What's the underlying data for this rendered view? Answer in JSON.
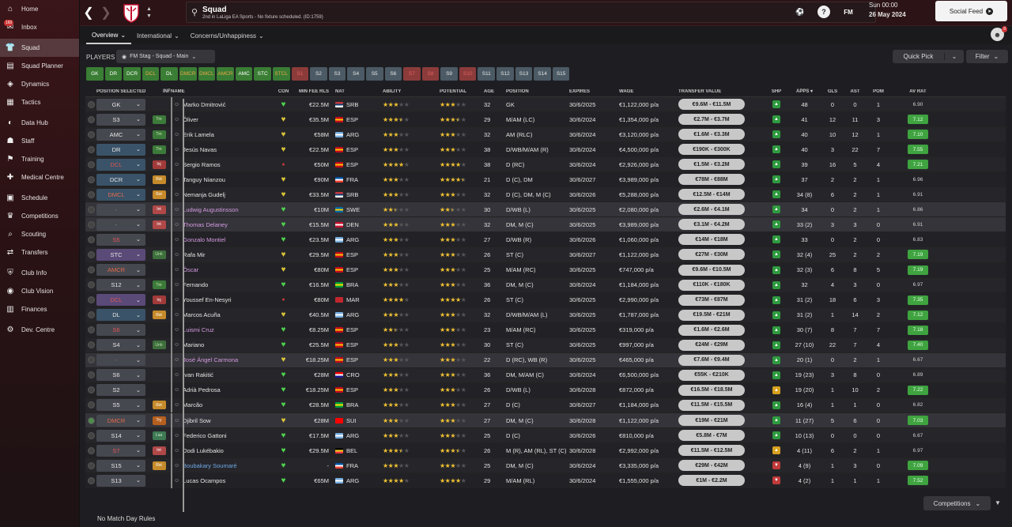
{
  "sidebar": {
    "items": [
      {
        "label": "Home",
        "icon": "home-icon",
        "glyph": "⌂"
      },
      {
        "label": "Inbox",
        "icon": "inbox-icon",
        "glyph": "✉",
        "badge": "160"
      },
      {
        "label": "Squad",
        "icon": "squad-icon",
        "glyph": "👕",
        "active": true
      },
      {
        "label": "Squad Planner",
        "icon": "squad-planner-icon",
        "glyph": "▤"
      },
      {
        "label": "Dynamics",
        "icon": "dynamics-icon",
        "glyph": "◈"
      },
      {
        "label": "Tactics",
        "icon": "tactics-icon",
        "glyph": "▦"
      },
      {
        "label": "Data Hub",
        "icon": "data-hub-icon",
        "glyph": "◐"
      },
      {
        "label": "Staff",
        "icon": "staff-icon",
        "glyph": "☗"
      },
      {
        "label": "Training",
        "icon": "training-icon",
        "glyph": "⚑"
      },
      {
        "label": "Medical Centre",
        "icon": "medical-icon",
        "glyph": "✚"
      },
      {
        "label": "Schedule",
        "icon": "schedule-icon",
        "glyph": "▣"
      },
      {
        "label": "Competitions",
        "icon": "competitions-icon",
        "glyph": "♛"
      },
      {
        "label": "Scouting",
        "icon": "scouting-icon",
        "glyph": "⌕"
      },
      {
        "label": "Transfers",
        "icon": "transfers-icon",
        "glyph": "⇄"
      },
      {
        "label": "Club Info",
        "icon": "club-info-icon",
        "glyph": "⛨"
      },
      {
        "label": "Club Vision",
        "icon": "club-vision-icon",
        "glyph": "◉"
      },
      {
        "label": "Finances",
        "icon": "finances-icon",
        "glyph": "▥"
      },
      {
        "label": "Dev. Centre",
        "icon": "dev-centre-icon",
        "glyph": "⚙"
      }
    ]
  },
  "header": {
    "title": "Squad",
    "subtitle": "2nd in LaLiga EA Sports - No fixture scheduled. (ID:1759)",
    "date_line1": "Sun 00:00",
    "date_line2": "26 May 2024",
    "social_feed": "Social Feed",
    "fm_label": "FM"
  },
  "subtabs": [
    {
      "label": "Overview",
      "active": true
    },
    {
      "label": "International"
    },
    {
      "label": "Concerns/Unhappiness"
    }
  ],
  "players_bar": {
    "label": "PLAYERS",
    "view": "FM Stag - Squad - Main",
    "quick_pick": "Quick Pick",
    "filter": "Filter"
  },
  "chips": [
    {
      "t": "GK",
      "s": "g"
    },
    {
      "t": "DR",
      "s": "g"
    },
    {
      "t": "DCR",
      "s": "g"
    },
    {
      "t": "DCL",
      "s": "go"
    },
    {
      "t": "DL",
      "s": "g"
    },
    {
      "t": "DMCR",
      "s": "go"
    },
    {
      "t": "DMCL",
      "s": "go"
    },
    {
      "t": "AMCR",
      "s": "go"
    },
    {
      "t": "AMC",
      "s": "g"
    },
    {
      "t": "STC",
      "s": "g"
    },
    {
      "t": "STCL",
      "s": "go"
    },
    {
      "t": "S1",
      "s": "r"
    },
    {
      "t": "S2",
      "s": "s"
    },
    {
      "t": "S3",
      "s": "s"
    },
    {
      "t": "S4",
      "s": "s"
    },
    {
      "t": "S5",
      "s": "s"
    },
    {
      "t": "S6",
      "s": "s"
    },
    {
      "t": "S7",
      "s": "r"
    },
    {
      "t": "S8",
      "s": "r"
    },
    {
      "t": "S9",
      "s": "s"
    },
    {
      "t": "S10",
      "s": "r"
    },
    {
      "t": "S11",
      "s": "s"
    },
    {
      "t": "S12",
      "s": "s"
    },
    {
      "t": "S13",
      "s": "s"
    },
    {
      "t": "S14",
      "s": "s"
    },
    {
      "t": "S15",
      "s": "s"
    }
  ],
  "columns": {
    "pos": "POSITION SELECTED",
    "inf": "INF",
    "name": "NAME",
    "con": "CON",
    "fee": "MIN FEE RLS",
    "nat": "NAT",
    "abi": "ABILITY",
    "pot": "POTENTIAL",
    "age": "AGE",
    "position": "POSITION",
    "expires": "EXPIRES",
    "wage": "WAGE",
    "tv": "TRANSFER VALUE",
    "shp": "SHP",
    "apps": "APPS",
    "gls": "GLS",
    "ast": "AST",
    "pom": "POM",
    "av": "AV RAT"
  },
  "players": [
    {
      "sel": "GK",
      "sc": "gray",
      "inf": "",
      "name": "Marko Dmitrović",
      "con": "g",
      "fee": "€22.5M",
      "nat": "SRB",
      "flag": [
        "#c6363c",
        "#0c4076",
        "#ffffff"
      ],
      "abi": 3,
      "pot": 3,
      "age": "32",
      "position": "GK",
      "exp": "30/6/2025",
      "wage": "€1,122,000 p/a",
      "tv": "€9.6M - €11.5M",
      "shp": "g",
      "apps": "48",
      "gls": "0",
      "ast": "0",
      "pom": "1",
      "av": "6.90",
      "avg": false
    },
    {
      "sel": "S3",
      "sc": "gray",
      "inf": "Tm",
      "it": "tm",
      "name": "Óliver",
      "con": "y",
      "fee": "€35.5M",
      "nat": "ESP",
      "flag": [
        "#c60b1e",
        "#ffc400",
        "#c60b1e"
      ],
      "abi": 3.5,
      "pot": 3.5,
      "age": "29",
      "position": "M/AM (LC)",
      "exp": "30/6/2024",
      "wage": "€1,354,000 p/a",
      "tv": "€2.7M - €3.7M",
      "shp": "g",
      "apps": "41",
      "gls": "12",
      "ast": "11",
      "pom": "3",
      "av": "7.12",
      "avg": true
    },
    {
      "sel": "AMC",
      "sc": "gray",
      "inf": "Tm",
      "it": "tm",
      "name": "Erik Lamela",
      "con": "y",
      "fee": "€58M",
      "nat": "ARG",
      "flag": [
        "#74acdf",
        "#ffffff",
        "#74acdf"
      ],
      "abi": 3,
      "pot": 3,
      "age": "32",
      "position": "AM (RLC)",
      "exp": "30/6/2024",
      "wage": "€3,120,000 p/a",
      "tv": "€1.6M - €3.3M",
      "shp": "g",
      "apps": "40",
      "gls": "10",
      "ast": "12",
      "pom": "1",
      "av": "7.10",
      "avg": true
    },
    {
      "sel": "DR",
      "sc": "blue",
      "inf": "Tm",
      "it": "tm",
      "name": "Jesús Navas",
      "con": "y",
      "fee": "€22.5M",
      "nat": "ESP",
      "flag": [
        "#c60b1e",
        "#ffc400",
        "#c60b1e"
      ],
      "abi": 3,
      "pot": 3,
      "age": "38",
      "position": "D/WB/M/AM (R)",
      "exp": "30/6/2024",
      "wage": "€4,500,000 p/a",
      "tv": "€190K - €300K",
      "shp": "g",
      "apps": "40",
      "gls": "3",
      "ast": "22",
      "pom": "7",
      "av": "7.55",
      "avg": true
    },
    {
      "sel": "DCL",
      "sc": "blue",
      "red": true,
      "inf": "Inj",
      "it": "inj",
      "name": "Sergio Ramos",
      "con": "r",
      "fee": "€50M",
      "nat": "ESP",
      "flag": [
        "#c60b1e",
        "#ffc400",
        "#c60b1e"
      ],
      "abi": 4,
      "pot": 4,
      "age": "38",
      "position": "D (RC)",
      "exp": "30/6/2024",
      "wage": "€2,926,000 p/a",
      "tv": "€1.5M - €3.2M",
      "shp": "g",
      "apps": "39",
      "gls": "16",
      "ast": "5",
      "pom": "4",
      "av": "7.21",
      "avg": true
    },
    {
      "sel": "DCR",
      "sc": "blue",
      "inf": "Rst",
      "it": "rst",
      "name": "Tanguy Nianzou",
      "con": "y",
      "fee": "€90M",
      "nat": "FRA",
      "flag": [
        "#0055a4",
        "#ffffff",
        "#ef4135"
      ],
      "abi": 3,
      "pot": 4.5,
      "age": "21",
      "position": "D (C), DM",
      "exp": "30/6/2027",
      "wage": "€3,989,000 p/a",
      "tv": "€78M - €88M",
      "shp": "g",
      "apps": "37",
      "gls": "2",
      "ast": "2",
      "pom": "1",
      "av": "6.96",
      "avg": false
    },
    {
      "sel": "DMCL",
      "sc": "blue",
      "orange": true,
      "inf": "Rst",
      "it": "rst",
      "name": "Nemanja Gudelj",
      "con": "y",
      "fee": "€33.5M",
      "nat": "SRB",
      "flag": [
        "#c6363c",
        "#0c4076",
        "#ffffff"
      ],
      "abi": 3,
      "pot": 3,
      "age": "32",
      "position": "D (C), DM, M (C)",
      "exp": "30/6/2026",
      "wage": "€5,288,000 p/a",
      "tv": "€12.5M - €14M",
      "shp": "g",
      "apps": "34 (8)",
      "gls": "6",
      "ast": "2",
      "pom": "1",
      "av": "6.91",
      "avg": false
    },
    {
      "sel": "-",
      "sc": "gray",
      "inf": "Int",
      "it": "int",
      "name": "Ludwig Augustinsson",
      "nm": "loan",
      "con": "g",
      "fee": "€10M",
      "nat": "SWE",
      "flag": [
        "#006aa7",
        "#fecc00",
        "#006aa7"
      ],
      "abi": 2.5,
      "pot": 2.5,
      "age": "30",
      "position": "D/WB (L)",
      "exp": "30/6/2025",
      "wage": "€2,080,000 p/a",
      "tv": "€2.6M - €4.1M",
      "shp": "g",
      "apps": "34",
      "gls": "0",
      "ast": "2",
      "pom": "1",
      "av": "6.86",
      "avg": false,
      "hl": true
    },
    {
      "sel": "-",
      "sc": "gray",
      "inf": "Int",
      "it": "int",
      "name": "Thomas Delaney",
      "nm": "loan",
      "con": "g",
      "fee": "€15.5M",
      "nat": "DEN",
      "flag": [
        "#c8102e",
        "#ffffff",
        "#c8102e"
      ],
      "abi": 3,
      "pot": 3,
      "age": "32",
      "position": "DM, M (C)",
      "exp": "30/6/2025",
      "wage": "€3,989,000 p/a",
      "tv": "€3.1M - €4.2M",
      "shp": "g",
      "apps": "33 (2)",
      "gls": "3",
      "ast": "3",
      "pom": "0",
      "av": "6.91",
      "avg": false,
      "hl": true
    },
    {
      "sel": "S5",
      "sc": "gray",
      "red": true,
      "inf": "",
      "name": "Gonzalo Montiel",
      "nm": "loan",
      "con": "g",
      "fee": "€23.5M",
      "nat": "ARG",
      "flag": [
        "#74acdf",
        "#ffffff",
        "#74acdf"
      ],
      "abi": 3,
      "pot": 3,
      "age": "27",
      "position": "D/WB (R)",
      "exp": "30/6/2026",
      "wage": "€1,060,000 p/a",
      "tv": "€14M - €18M",
      "shp": "g",
      "apps": "33",
      "gls": "0",
      "ast": "2",
      "pom": "0",
      "av": "6.83",
      "avg": false
    },
    {
      "sel": "STC",
      "sc": "purple",
      "inf": "Unh",
      "it": "une",
      "name": "Rafa Mir",
      "con": "y",
      "fee": "€29.5M",
      "nat": "ESP",
      "flag": [
        "#c60b1e",
        "#ffc400",
        "#c60b1e"
      ],
      "abi": 3,
      "pot": 3,
      "age": "26",
      "position": "ST (C)",
      "exp": "30/6/2027",
      "wage": "€1,122,000 p/a",
      "tv": "€27M - €30M",
      "shp": "g",
      "apps": "32 (4)",
      "gls": "25",
      "ast": "2",
      "pom": "2",
      "av": "7.19",
      "avg": true
    },
    {
      "sel": "AMCR",
      "sc": "gray",
      "orange": true,
      "inf": "",
      "name": "Óscar",
      "nm": "loan",
      "con": "y",
      "fee": "€80M",
      "nat": "ESP",
      "flag": [
        "#c60b1e",
        "#ffc400",
        "#c60b1e"
      ],
      "abi": 3,
      "pot": 3,
      "age": "25",
      "position": "M/AM (RC)",
      "exp": "30/6/2025",
      "wage": "€747,000 p/a",
      "tv": "€9.6M - €10.5M",
      "shp": "g",
      "apps": "32 (3)",
      "gls": "6",
      "ast": "8",
      "pom": "5",
      "av": "7.19",
      "avg": true
    },
    {
      "sel": "S12",
      "sc": "gray",
      "inf": "Tm",
      "it": "tm",
      "name": "Fernando",
      "con": "g",
      "fee": "€16.5M",
      "nat": "BRA",
      "flag": [
        "#009c3b",
        "#ffdf00",
        "#009c3b"
      ],
      "abi": 3,
      "pot": 3,
      "age": "36",
      "position": "DM, M (C)",
      "exp": "30/6/2024",
      "wage": "€1,184,000 p/a",
      "tv": "€110K - €180K",
      "shp": "g",
      "apps": "32",
      "gls": "4",
      "ast": "3",
      "pom": "0",
      "av": "6.97",
      "avg": false
    },
    {
      "sel": "DCL",
      "sc": "purple",
      "red": true,
      "inf": "Inj",
      "it": "inj",
      "name": "Youssef En-Nesyri",
      "con": "r",
      "fee": "€80M",
      "nat": "MAR",
      "flag": [
        "#c1272d",
        "#c1272d",
        "#c1272d"
      ],
      "abi": 4,
      "pot": 4,
      "age": "26",
      "position": "ST (C)",
      "exp": "30/6/2025",
      "wage": "€2,990,000 p/a",
      "tv": "€73M - €87M",
      "shp": "g",
      "apps": "31 (2)",
      "gls": "18",
      "ast": "6",
      "pom": "3",
      "av": "7.35",
      "avg": true
    },
    {
      "sel": "DL",
      "sc": "blue",
      "inf": "Rst",
      "it": "rst",
      "name": "Marcos Acuña",
      "con": "y",
      "fee": "€40.5M",
      "nat": "ARG",
      "flag": [
        "#74acdf",
        "#ffffff",
        "#74acdf"
      ],
      "abi": 3,
      "pot": 3,
      "age": "32",
      "position": "D/WB/M/AM (L)",
      "exp": "30/6/2025",
      "wage": "€1,787,000 p/a",
      "tv": "€19.5M - €21M",
      "shp": "g",
      "apps": "31 (2)",
      "gls": "1",
      "ast": "14",
      "pom": "2",
      "av": "7.12",
      "avg": true
    },
    {
      "sel": "S6",
      "sc": "gray",
      "red": true,
      "inf": "",
      "name": "Luismi Cruz",
      "nm": "loan",
      "con": "g",
      "fee": "€8.25M",
      "nat": "ESP",
      "flag": [
        "#c60b1e",
        "#ffc400",
        "#c60b1e"
      ],
      "abi": 2.5,
      "pot": 3,
      "age": "23",
      "position": "M/AM (RC)",
      "exp": "30/6/2025",
      "wage": "€319,000 p/a",
      "tv": "€1.6M - €2.6M",
      "shp": "g",
      "apps": "30 (7)",
      "gls": "8",
      "ast": "7",
      "pom": "7",
      "av": "7.18",
      "avg": true
    },
    {
      "sel": "S4",
      "sc": "gray",
      "inf": "Unh",
      "it": "une",
      "name": "Mariano",
      "con": "g",
      "fee": "€25.5M",
      "nat": "ESP",
      "flag": [
        "#c60b1e",
        "#ffc400",
        "#c60b1e"
      ],
      "abi": 3,
      "pot": 3,
      "age": "30",
      "position": "ST (C)",
      "exp": "30/6/2025",
      "wage": "€997,000 p/a",
      "tv": "€24M - €29M",
      "shp": "g",
      "apps": "27 (10)",
      "gls": "22",
      "ast": "7",
      "pom": "4",
      "av": "7.40",
      "avg": true
    },
    {
      "sel": "-",
      "sc": "gray",
      "inf": "",
      "name": "José Ángel Carmona",
      "nm": "loan",
      "con": "y",
      "fee": "€18.25M",
      "nat": "ESP",
      "flag": [
        "#c60b1e",
        "#ffc400",
        "#c60b1e"
      ],
      "abi": 3,
      "pot": 3,
      "age": "22",
      "position": "D (RC), WB (R)",
      "exp": "30/6/2025",
      "wage": "€465,000 p/a",
      "tv": "€7.6M - €9.4M",
      "shp": "g",
      "apps": "20 (1)",
      "gls": "0",
      "ast": "2",
      "pom": "1",
      "av": "6.67",
      "avg": false,
      "hl": true
    },
    {
      "sel": "S6",
      "sc": "gray",
      "inf": "",
      "name": "Ivan Rakitić",
      "con": "g",
      "fee": "€28M",
      "nat": "CRO",
      "flag": [
        "#ff0000",
        "#ffffff",
        "#171796"
      ],
      "abi": 3,
      "pot": 3,
      "age": "36",
      "position": "DM, M/AM (C)",
      "exp": "30/6/2024",
      "wage": "€6,500,000 p/a",
      "tv": "€55K - €210K",
      "shp": "g",
      "apps": "19 (23)",
      "gls": "3",
      "ast": "8",
      "pom": "0",
      "av": "6.89",
      "avg": false
    },
    {
      "sel": "S2",
      "sc": "gray",
      "inf": "",
      "name": "Adrià Pedrosa",
      "con": "g",
      "fee": "€18.25M",
      "nat": "ESP",
      "flag": [
        "#c60b1e",
        "#ffc400",
        "#c60b1e"
      ],
      "abi": 3,
      "pot": 3,
      "age": "26",
      "position": "D/WB (L)",
      "exp": "30/6/2028",
      "wage": "€872,000 p/a",
      "tv": "€16.5M - €18.5M",
      "shp": "y",
      "apps": "19 (20)",
      "gls": "1",
      "ast": "10",
      "pom": "2",
      "av": "7.22",
      "avg": true
    },
    {
      "sel": "S5",
      "sc": "gray",
      "inf": "Rst",
      "it": "rst",
      "name": "Marcão",
      "con": "g",
      "fee": "€28.5M",
      "nat": "BRA",
      "flag": [
        "#009c3b",
        "#ffdf00",
        "#009c3b"
      ],
      "abi": 3,
      "pot": 3,
      "age": "27",
      "position": "D (C)",
      "exp": "30/6/2027",
      "wage": "€1,184,000 p/a",
      "tv": "€11.5M - €15.5M",
      "shp": "g",
      "apps": "16 (4)",
      "gls": "1",
      "ast": "1",
      "pom": "0",
      "av": "6.82",
      "avg": false
    },
    {
      "sel": "DMCR",
      "sc": "gray",
      "orange": true,
      "inf": "Try",
      "it": "try",
      "name": "Djibril Sow",
      "con": "y",
      "fee": "€28M",
      "nat": "SUI",
      "flag": [
        "#ff0000",
        "#ff0000",
        "#ff0000"
      ],
      "abi": 3,
      "pot": 3,
      "age": "27",
      "position": "DM, M (C)",
      "exp": "30/6/2028",
      "wage": "€1,122,000 p/a",
      "tv": "€19M - €21M",
      "shp": "g",
      "apps": "11 (27)",
      "gls": "5",
      "ast": "6",
      "pom": "0",
      "av": "7.03",
      "avg": true,
      "hl": true,
      "ok": true
    },
    {
      "sel": "S14",
      "sc": "gray",
      "inf": "Lsa",
      "it": "lsa",
      "name": "Federico Gattoni",
      "con": "g",
      "fee": "€17.5M",
      "nat": "ARG",
      "flag": [
        "#74acdf",
        "#ffffff",
        "#74acdf"
      ],
      "abi": 3,
      "pot": 3,
      "age": "25",
      "position": "D (C)",
      "exp": "30/6/2026",
      "wage": "€810,000 p/a",
      "tv": "€5.8M - €7M",
      "shp": "g",
      "apps": "10 (13)",
      "gls": "0",
      "ast": "0",
      "pom": "0",
      "av": "6.67",
      "avg": false
    },
    {
      "sel": "S7",
      "sc": "gray",
      "red": true,
      "inf": "Int",
      "it": "int",
      "name": "Dodi Lukébakio",
      "con": "g",
      "fee": "€29.5M",
      "nat": "BEL",
      "flag": [
        "#000000",
        "#fdda24",
        "#ef3340"
      ],
      "abi": 3.5,
      "pot": 3.5,
      "age": "26",
      "position": "M (R), AM (RL), ST (C)",
      "exp": "30/6/2028",
      "wage": "€2,992,000 p/a",
      "tv": "€11.5M - €12.5M",
      "shp": "y",
      "apps": "4 (11)",
      "gls": "6",
      "ast": "2",
      "pom": "1",
      "av": "6.97",
      "avg": false
    },
    {
      "sel": "S15",
      "sc": "gray",
      "inf": "Rst",
      "it": "rst",
      "name": "Boubakary Soumaré",
      "nm": "blue",
      "con": "g",
      "fee": "-",
      "nat": "FRA",
      "flag": [
        "#0055a4",
        "#ffffff",
        "#ef4135"
      ],
      "abi": 3,
      "pot": 3,
      "age": "25",
      "position": "DM, M (C)",
      "exp": "30/6/2024",
      "wage": "€3,335,000 p/a",
      "tv": "€29M - €42M",
      "shp": "r",
      "apps": "4 (9)",
      "gls": "1",
      "ast": "3",
      "pom": "0",
      "av": "7.09",
      "avg": true
    },
    {
      "sel": "S13",
      "sc": "gray",
      "inf": "",
      "name": "Lucas Ocampos",
      "con": "g",
      "fee": "€65M",
      "nat": "ARG",
      "flag": [
        "#74acdf",
        "#ffffff",
        "#74acdf"
      ],
      "abi": 4,
      "pot": 4,
      "age": "29",
      "position": "M/AM (RL)",
      "exp": "30/6/2024",
      "wage": "€1,555,000 p/a",
      "tv": "€1M - €2.2M",
      "shp": "r",
      "apps": "4 (2)",
      "gls": "1",
      "ast": "1",
      "pom": "1",
      "av": "7.52",
      "avg": true
    }
  ],
  "footer": {
    "rules": "No Match Day Rules",
    "competitions": "Competitions"
  },
  "colors": {
    "star": "#f1c232",
    "star_empty": "#55555a",
    "heart_green": "#4ed24e",
    "heart_yellow": "#d9c43a",
    "heart_red": "#c83a3a",
    "shp_green": "#2f9a3f",
    "shp_yellow": "#d7a11f",
    "shp_red": "#c03a3a"
  }
}
